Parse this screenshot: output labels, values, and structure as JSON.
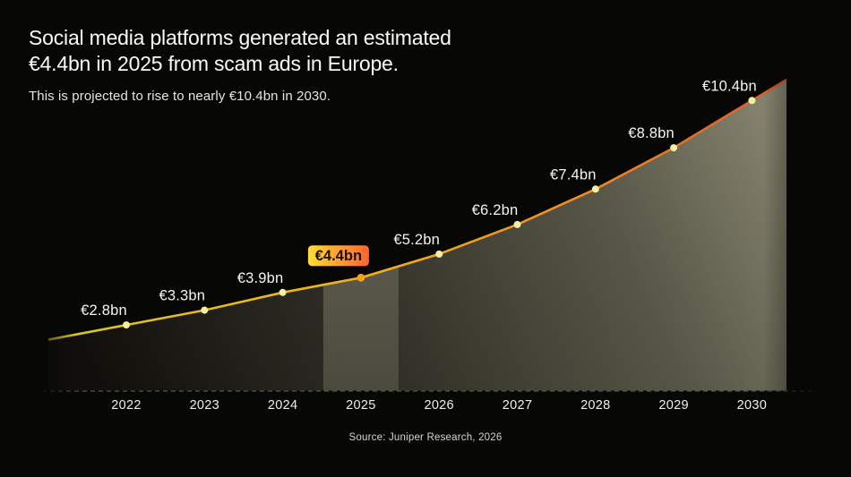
{
  "header": {
    "title_line1": "Social media platforms generated an estimated",
    "title_line2": "€4.4bn in 2025 from scam ads in Europe.",
    "subtitle": "This is projected to rise to nearly €10.4bn in 2030."
  },
  "footer": {
    "source": "Source: Juniper Research, 2026"
  },
  "chart_data": {
    "type": "area",
    "title": "Social media platforms generated an estimated €4.4bn in 2025 from scam ads in Europe.",
    "subtitle": "This is projected to rise to nearly €10.4bn in 2030.",
    "source": "Source: Juniper Research, 2026",
    "categories": [
      "2022",
      "2023",
      "2024",
      "2025",
      "2026",
      "2027",
      "2028",
      "2029",
      "2030"
    ],
    "values": [
      2.8,
      3.3,
      3.9,
      4.4,
      5.2,
      6.2,
      7.4,
      8.8,
      10.4
    ],
    "labels": [
      "€2.8bn",
      "€3.3bn",
      "€3.9bn",
      "€4.4bn",
      "€5.2bn",
      "€6.2bn",
      "€7.4bn",
      "€8.8bn",
      "€10.4bn"
    ],
    "unit": "€bn",
    "ylabel": "",
    "xlabel": "",
    "ylim": [
      0,
      11
    ],
    "grid": false,
    "legend": false,
    "highlight_index": 3,
    "colors": {
      "background": "#070706",
      "line_start": "#d9c626",
      "line_mid1": "#f2b01e",
      "line_mid2": "#ef8c26",
      "line_end": "#e0562a",
      "dot": "#f3efa4",
      "dot_highlight": "#f7a01d",
      "badge_start": "#ffdd33",
      "badge_end": "#ff6430",
      "badge_text": "#181200",
      "area_dark": "#100f0b",
      "area_mid1": "#302f26",
      "area_mid2": "#575647",
      "area_light": "#8d8b75",
      "band_top": "#6e6d5a",
      "band_bottom": "#4b4a3e",
      "axis_dash": "#54544e",
      "value_text": "#f4f4ef",
      "year_text": "#eeeeea"
    }
  }
}
